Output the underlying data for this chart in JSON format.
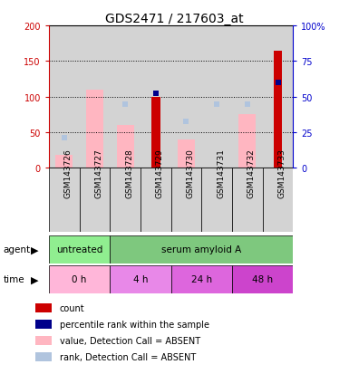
{
  "title": "GDS2471 / 217603_at",
  "samples": [
    "GSM143726",
    "GSM143727",
    "GSM143728",
    "GSM143729",
    "GSM143730",
    "GSM143731",
    "GSM143732",
    "GSM143733"
  ],
  "count_values": [
    null,
    null,
    null,
    100,
    null,
    null,
    null,
    165
  ],
  "percentile_rank_values": [
    null,
    null,
    null,
    105,
    null,
    null,
    null,
    120
  ],
  "value_absent": [
    18,
    110,
    60,
    null,
    40,
    null,
    75,
    null
  ],
  "rank_absent": [
    42,
    null,
    90,
    null,
    65,
    90,
    90,
    null
  ],
  "ylim_left": [
    0,
    200
  ],
  "ylim_right": [
    0,
    100
  ],
  "left_ticks": [
    0,
    50,
    100,
    150,
    200
  ],
  "right_ticks": [
    0,
    25,
    50,
    75,
    100
  ],
  "left_tick_labels": [
    "0",
    "50",
    "100",
    "150",
    "200"
  ],
  "right_tick_labels": [
    "0",
    "25",
    "50",
    "75",
    "100%"
  ],
  "count_color": "#cc0000",
  "percentile_color": "#00008b",
  "value_absent_color": "#ffb6c1",
  "rank_absent_color": "#b0c4de",
  "col_bg_color": "#d3d3d3",
  "left_axis_color": "#cc0000",
  "right_axis_color": "#0000cc",
  "bar_width": 0.35,
  "agent_untreated_color": "#90ee90",
  "agent_serum_color": "#7ec87e",
  "time_0h_color": "#ffb6d9",
  "time_4h_color": "#e888e8",
  "time_24h_color": "#dd66dd",
  "time_48h_color": "#cc44cc"
}
